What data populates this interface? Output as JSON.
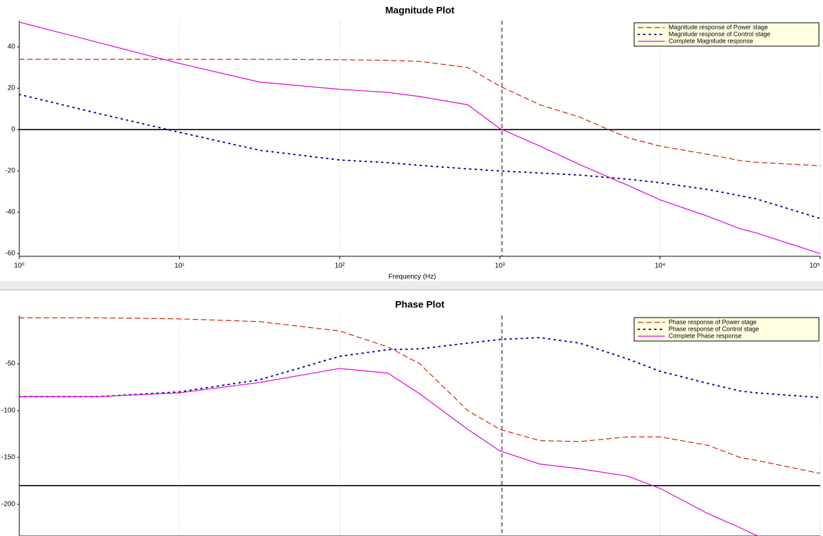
{
  "chart_data": [
    {
      "type": "line",
      "title": "Magnitude Plot",
      "xlabel": "Frequency (Hz)",
      "xscale": "log",
      "grid": true,
      "legend": "upper right",
      "x": [
        1,
        3.16,
        10,
        31.6,
        100,
        200,
        316,
        631,
        1000,
        1778,
        3162,
        6310,
        10000,
        19953,
        31623,
        39811,
        100000
      ],
      "series": [
        {
          "name": "Magnitude response of Power stage",
          "color": "#cc2200",
          "style": "dashed",
          "values": [
            34,
            34,
            34,
            34,
            33.8,
            33.5,
            33,
            30,
            21,
            12,
            6,
            -4,
            -8,
            -12,
            -15,
            -15.8,
            -17.5
          ]
        },
        {
          "name": "Magnitude response of Control stage",
          "color": "#000099",
          "style": "dotted",
          "values": [
            17,
            7.7,
            -1.3,
            -10,
            -14.7,
            -16,
            -17.3,
            -19,
            -20,
            -21,
            -22,
            -24,
            -25.7,
            -29,
            -32,
            -33.5,
            -43
          ]
        },
        {
          "name": "Complete Magnitude response",
          "color": "#dd00dd",
          "style": "solid",
          "values": [
            52,
            42,
            32,
            23,
            19.5,
            18,
            16,
            12,
            0.5,
            -8,
            -17,
            -27,
            -34,
            -42,
            -48,
            -50,
            -60
          ]
        }
      ],
      "xlim": [
        1,
        100000
      ],
      "xticks": [
        {
          "value": 1,
          "label": "10⁰"
        },
        {
          "value": 10,
          "label": "10¹"
        },
        {
          "value": 100,
          "label": "10²"
        },
        {
          "value": 1000,
          "label": "10³"
        },
        {
          "value": 10000,
          "label": "10⁴"
        },
        {
          "value": 100000,
          "label": "10⁵"
        }
      ],
      "ylim": [
        -61.3,
        52.7
      ],
      "yticks": [
        -60,
        -40,
        -20,
        0,
        20,
        40
      ],
      "hline": 0,
      "vline": 1030
    },
    {
      "type": "line",
      "title": "Phase Plot",
      "xscale": "log",
      "grid": true,
      "legend": "upper right",
      "x": [
        1,
        3.16,
        10,
        31.6,
        100,
        200,
        316,
        631,
        1000,
        1778,
        3162,
        6310,
        10000,
        19953,
        31623,
        39811,
        100000
      ],
      "series": [
        {
          "name": "Phase response of Power stage",
          "color": "#cc2200",
          "style": "dashed",
          "values": [
            -1,
            -1,
            -2,
            -5,
            -15,
            -32,
            -50,
            -100,
            -120,
            -132,
            -133,
            -128,
            -128,
            -137,
            -150,
            -153,
            -167
          ]
        },
        {
          "name": "Phase response of Control stage",
          "color": "#000099",
          "style": "dotted",
          "values": [
            -85,
            -85,
            -80,
            -67,
            -42,
            -35,
            -34,
            -28,
            -24,
            -22,
            -28,
            -45,
            -58,
            -71,
            -79,
            -81,
            -86
          ]
        },
        {
          "name": "Complete Phase response",
          "color": "#dd00dd",
          "style": "solid",
          "values": [
            -85,
            -85,
            -81,
            -70,
            -55,
            -60,
            -82,
            -120,
            -143,
            -157,
            -162,
            -170,
            -183,
            -210,
            -225,
            -233,
            -262
          ]
        }
      ],
      "xlim": [
        1,
        100000
      ],
      "xticks": [
        1,
        10,
        100,
        1000,
        10000,
        100000
      ],
      "ylim": [
        -233.8,
        1.5
      ],
      "yticks": [
        -200,
        -150,
        -100,
        -50
      ],
      "hline": -180,
      "vline": 1030
    }
  ]
}
